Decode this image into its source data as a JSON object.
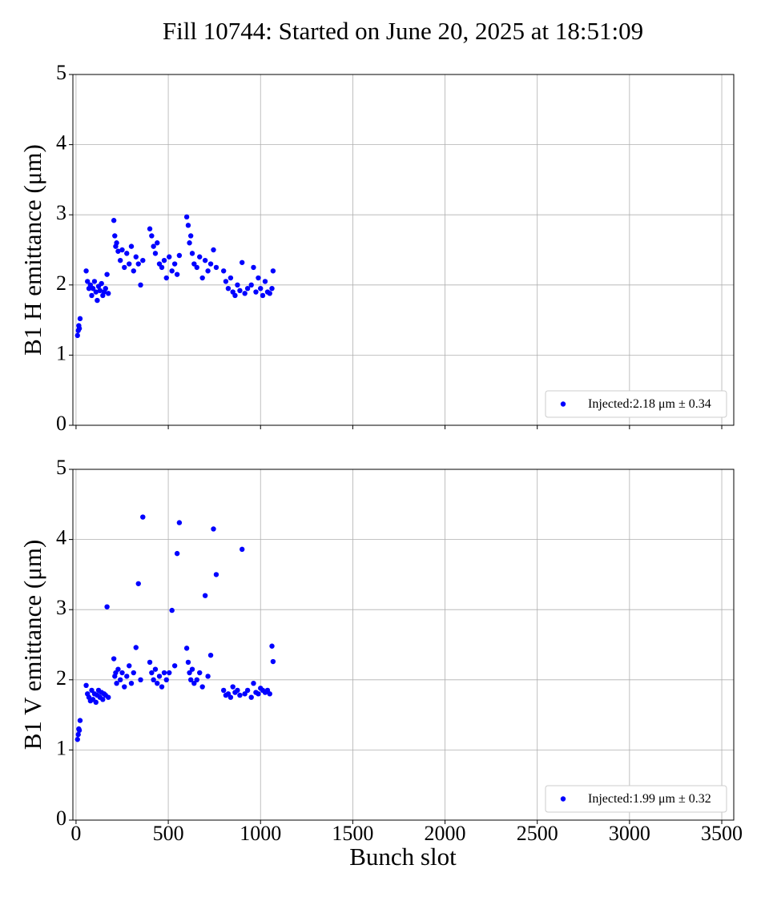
{
  "chart_data": [
    {
      "type": "scatter",
      "title": "Fill 10744: Started on June 20, 2025 at 18:51:09",
      "ylabel": "B1 H emittance (μm)",
      "xlim": [
        -17,
        3565
      ],
      "ylim": [
        0,
        5
      ],
      "xticks": [
        0,
        500,
        1000,
        1500,
        2000,
        2500,
        3000,
        3500
      ],
      "yticks": [
        0,
        1,
        2,
        3,
        4,
        5
      ],
      "grid": true,
      "legend": "lower right",
      "series": [
        {
          "name": "Injected:2.18 μm ± 0.34",
          "color": "#0000ff",
          "x": [
            8,
            12,
            15,
            18,
            22,
            55,
            62,
            70,
            78,
            85,
            92,
            100,
            108,
            115,
            122,
            130,
            138,
            145,
            152,
            160,
            168,
            175,
            205,
            210,
            215,
            220,
            228,
            240,
            250,
            262,
            275,
            288,
            300,
            312,
            325,
            338,
            350,
            362,
            400,
            410,
            420,
            430,
            440,
            452,
            465,
            478,
            490,
            505,
            520,
            535,
            548,
            560,
            600,
            608,
            615,
            622,
            630,
            640,
            655,
            670,
            685,
            700,
            715,
            730,
            745,
            760,
            800,
            812,
            825,
            838,
            850,
            862,
            875,
            888,
            900,
            915,
            930,
            950,
            962,
            975,
            988,
            1000,
            1012,
            1025,
            1038,
            1050,
            1062,
            1068
          ],
          "values": [
            1.28,
            1.35,
            1.42,
            1.38,
            1.52,
            2.2,
            2.05,
            1.95,
            2.0,
            1.85,
            1.95,
            2.05,
            1.9,
            1.78,
            1.98,
            1.92,
            2.02,
            1.85,
            1.9,
            1.95,
            2.15,
            1.88,
            2.92,
            2.7,
            2.55,
            2.6,
            2.48,
            2.35,
            2.5,
            2.25,
            2.45,
            2.3,
            2.55,
            2.2,
            2.4,
            2.3,
            2.0,
            2.35,
            2.8,
            2.7,
            2.55,
            2.45,
            2.6,
            2.3,
            2.25,
            2.35,
            2.1,
            2.4,
            2.2,
            2.3,
            2.15,
            2.42,
            2.97,
            2.85,
            2.6,
            2.7,
            2.45,
            2.3,
            2.25,
            2.4,
            2.1,
            2.35,
            2.2,
            2.3,
            2.5,
            2.25,
            2.2,
            2.05,
            1.95,
            2.1,
            1.9,
            1.85,
            2.0,
            1.92,
            2.32,
            1.88,
            1.95,
            2.0,
            2.25,
            1.9,
            2.1,
            1.95,
            1.85,
            2.05,
            1.9,
            1.88,
            1.95,
            2.2
          ]
        }
      ]
    },
    {
      "type": "scatter",
      "ylabel": "B1 V emittance (μm)",
      "xlabel": "Bunch slot",
      "xlim": [
        -17,
        3565
      ],
      "ylim": [
        0,
        5
      ],
      "xticks": [
        0,
        500,
        1000,
        1500,
        2000,
        2500,
        3000,
        3500
      ],
      "yticks": [
        0,
        1,
        2,
        3,
        4,
        5
      ],
      "grid": true,
      "legend": "lower right",
      "series": [
        {
          "name": "Injected:1.99 μm ± 0.32",
          "color": "#0000ff",
          "x": [
            8,
            12,
            15,
            18,
            22,
            55,
            62,
            70,
            78,
            85,
            92,
            100,
            108,
            115,
            122,
            130,
            138,
            145,
            152,
            160,
            168,
            175,
            205,
            210,
            215,
            220,
            228,
            240,
            250,
            262,
            275,
            288,
            300,
            312,
            325,
            338,
            350,
            362,
            400,
            410,
            420,
            430,
            440,
            452,
            465,
            478,
            490,
            505,
            520,
            535,
            548,
            560,
            600,
            608,
            615,
            622,
            630,
            640,
            655,
            670,
            685,
            700,
            715,
            730,
            745,
            760,
            800,
            812,
            825,
            838,
            850,
            862,
            875,
            888,
            900,
            915,
            930,
            950,
            962,
            975,
            988,
            1000,
            1012,
            1025,
            1038,
            1050,
            1062,
            1068
          ],
          "values": [
            1.15,
            1.22,
            1.3,
            1.28,
            1.42,
            1.92,
            1.8,
            1.75,
            1.7,
            1.85,
            1.72,
            1.8,
            1.68,
            1.78,
            1.85,
            1.75,
            1.82,
            1.72,
            1.8,
            1.78,
            3.04,
            1.75,
            2.3,
            2.05,
            2.1,
            1.95,
            2.15,
            2.0,
            2.1,
            1.9,
            2.05,
            2.2,
            1.95,
            2.1,
            2.46,
            3.37,
            2.0,
            4.32,
            2.25,
            2.1,
            2.0,
            2.15,
            1.95,
            2.05,
            1.9,
            2.1,
            2.0,
            2.1,
            2.99,
            2.2,
            3.8,
            4.24,
            2.45,
            2.25,
            2.1,
            2.0,
            2.15,
            1.95,
            2.0,
            2.1,
            1.9,
            3.2,
            2.05,
            2.35,
            4.15,
            3.5,
            1.85,
            1.78,
            1.8,
            1.75,
            1.9,
            1.82,
            1.85,
            1.78,
            3.86,
            1.8,
            1.85,
            1.75,
            1.95,
            1.82,
            1.8,
            1.88,
            1.85,
            1.82,
            1.85,
            1.8,
            2.48,
            2.26
          ]
        }
      ]
    }
  ]
}
